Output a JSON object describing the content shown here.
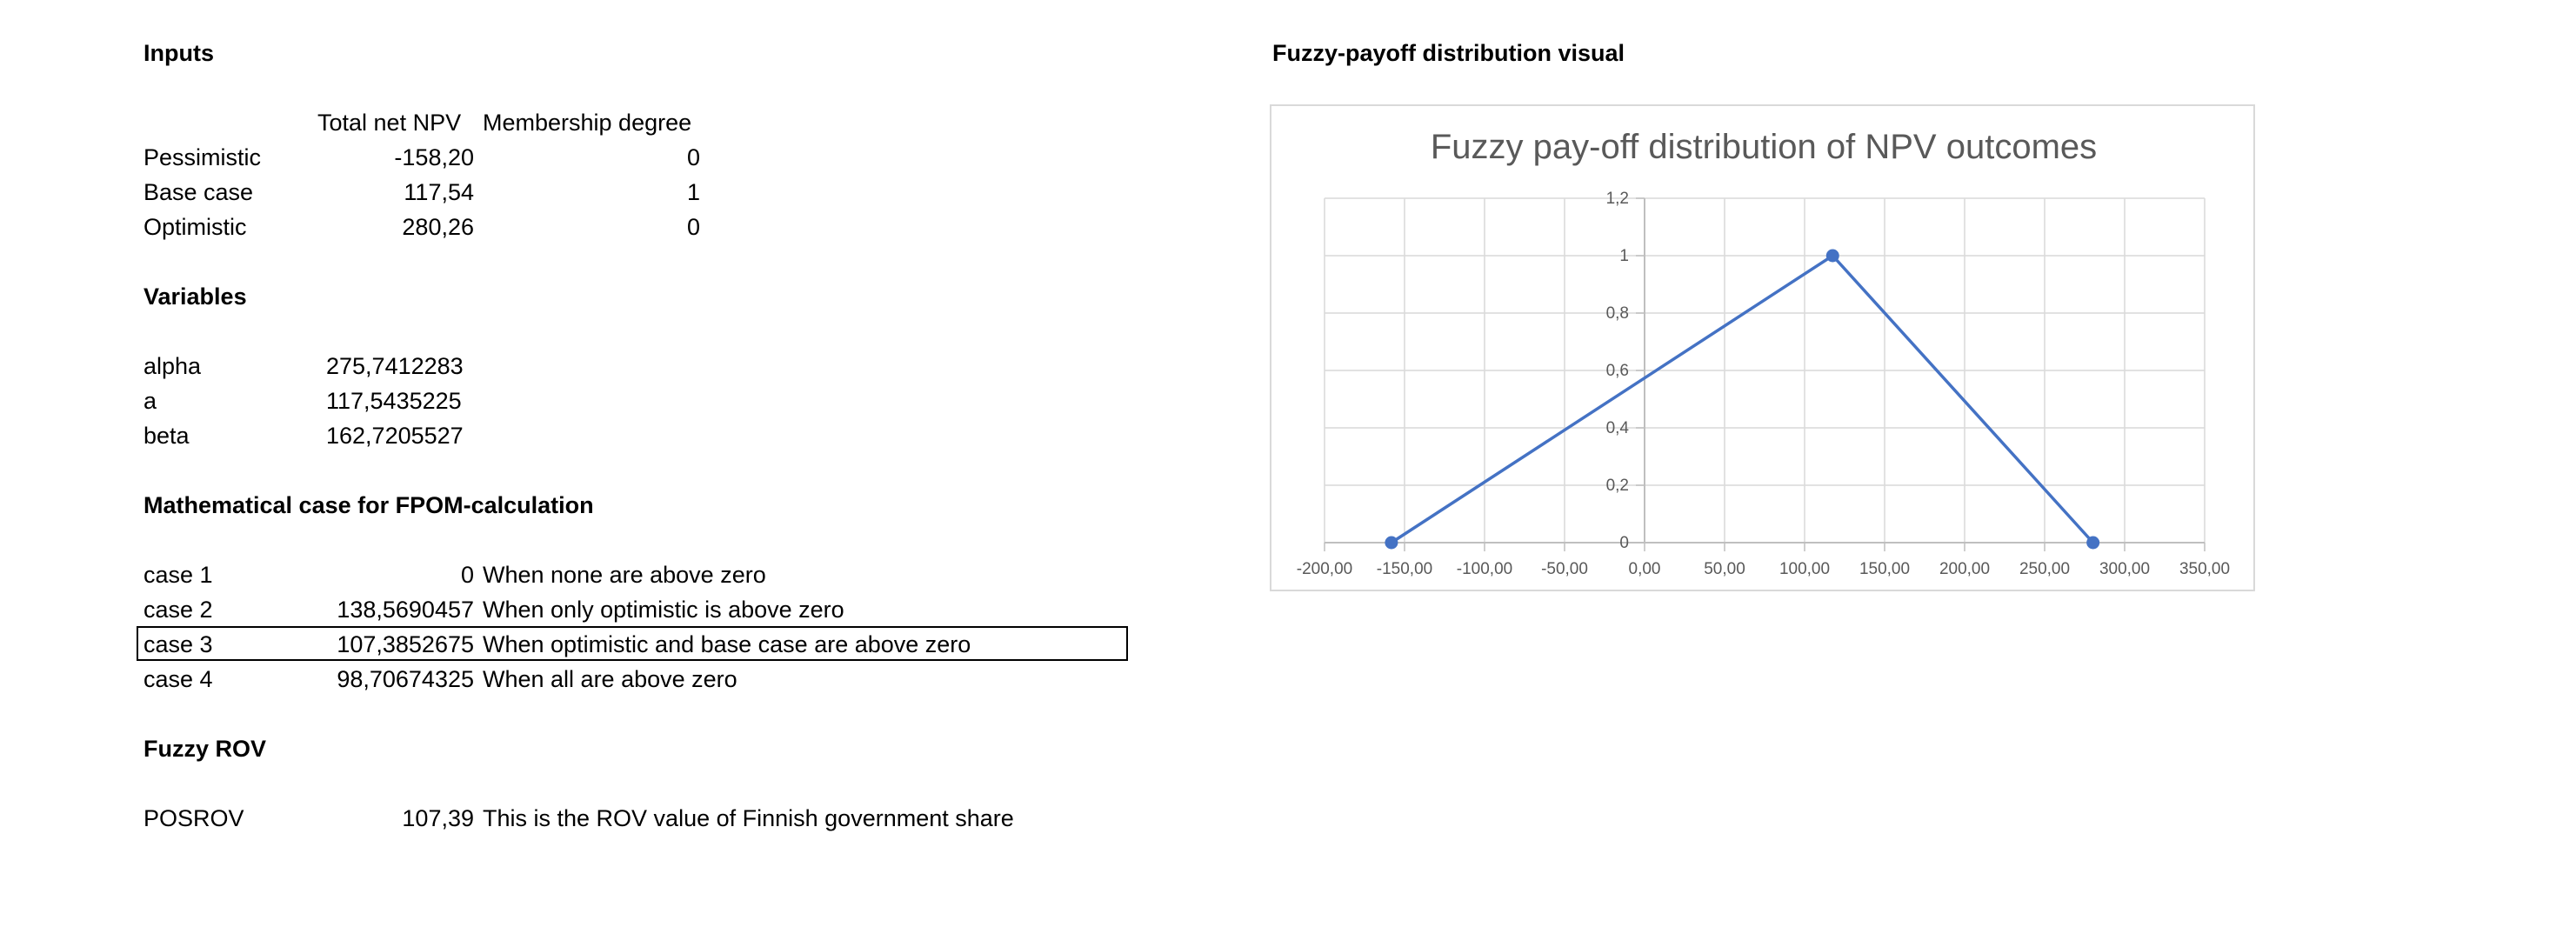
{
  "inputs": {
    "heading": "Inputs",
    "col_npv": "Total net NPV",
    "col_membership": "Membership degree",
    "rows": [
      {
        "label": "Pessimistic",
        "npv": "-158,20",
        "membership": "0"
      },
      {
        "label": "Base case",
        "npv": "117,54",
        "membership": "1"
      },
      {
        "label": "Optimistic",
        "npv": "280,26",
        "membership": "0"
      }
    ]
  },
  "variables": {
    "heading": "Variables",
    "rows": [
      {
        "label": "alpha",
        "value": "275,7412283"
      },
      {
        "label": "a",
        "value": "117,5435225"
      },
      {
        "label": "beta",
        "value": "162,7205527"
      }
    ]
  },
  "math": {
    "heading": "Mathematical case for FPOM-calculation",
    "rows": [
      {
        "label": "case 1",
        "value": "0",
        "note": "When none are above zero"
      },
      {
        "label": "case 2",
        "value": "138,5690457",
        "note": "When only optimistic is above zero"
      },
      {
        "label": "case 3",
        "value": "107,3852675",
        "note": "When optimistic and base case are above zero"
      },
      {
        "label": "case 4",
        "value": "98,70674325",
        "note": "When all are above zero"
      }
    ]
  },
  "fuzzy_rov": {
    "heading": "Fuzzy ROV",
    "label": "POSROV",
    "value": "107,39",
    "note": "This is the ROV value of Finnish government share"
  },
  "visual": {
    "heading": "Fuzzy-payoff distribution visual"
  },
  "chart_data": {
    "type": "scatter",
    "title": "Fuzzy pay-off distribution of NPV outcomes",
    "xlabel": "",
    "ylabel": "",
    "xlim": [
      -200,
      350
    ],
    "ylim": [
      0,
      1.2
    ],
    "x_ticks": [
      "-200,00",
      "-150,00",
      "-100,00",
      "-50,00",
      "0,00",
      "50,00",
      "100,00",
      "150,00",
      "200,00",
      "250,00",
      "300,00",
      "350,00"
    ],
    "y_ticks": [
      "0",
      "0,2",
      "0,4",
      "0,6",
      "0,8",
      "1",
      "1,2"
    ],
    "grid": true,
    "series": [
      {
        "x": [
          -158.2,
          117.54,
          280.26
        ],
        "y": [
          0,
          1,
          0
        ],
        "color": "#4472c4"
      }
    ]
  }
}
